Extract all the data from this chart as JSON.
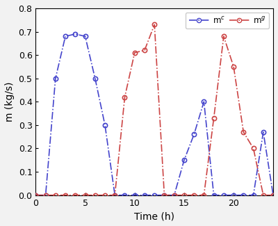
{
  "title": "",
  "xlabel": "Time (h)",
  "ylabel": "m (kg/s)",
  "xlim": [
    0,
    24
  ],
  "ylim": [
    0,
    0.8
  ],
  "xticks": [
    0,
    5,
    10,
    15,
    20
  ],
  "yticks": [
    0.0,
    0.1,
    0.2,
    0.3,
    0.4,
    0.5,
    0.6,
    0.7,
    0.8
  ],
  "mc_color": "#4444cc",
  "mg_color": "#cc4444",
  "mc_x": [
    0,
    1,
    2,
    3,
    4,
    5,
    6,
    7,
    8,
    9,
    10,
    11,
    12,
    13,
    14,
    15,
    16,
    17,
    18,
    19,
    20,
    21,
    22,
    23,
    24
  ],
  "mc_y": [
    0.0,
    0.0,
    0.5,
    0.68,
    0.69,
    0.68,
    0.5,
    0.3,
    0.0,
    0.0,
    0.0,
    0.0,
    0.0,
    0.0,
    0.0,
    0.15,
    0.26,
    0.4,
    0.0,
    0.0,
    0.0,
    0.0,
    0.0,
    0.27,
    0.0
  ],
  "mg_x": [
    0,
    1,
    2,
    3,
    4,
    5,
    6,
    7,
    8,
    9,
    10,
    11,
    12,
    13,
    14,
    15,
    16,
    17,
    18,
    19,
    20,
    21,
    22,
    23,
    24
  ],
  "mg_y": [
    0.0,
    0.0,
    0.0,
    0.0,
    0.0,
    0.0,
    0.0,
    0.0,
    0.0,
    0.42,
    0.61,
    0.62,
    0.73,
    0.0,
    0.0,
    0.0,
    0.0,
    0.0,
    0.33,
    0.68,
    0.55,
    0.27,
    0.2,
    0.0,
    0.0
  ],
  "legend_mc": "m$^c$",
  "legend_mg": "m$^g$",
  "bg_color": "#ffffff",
  "fig_bg_color": "#f2f2f2"
}
